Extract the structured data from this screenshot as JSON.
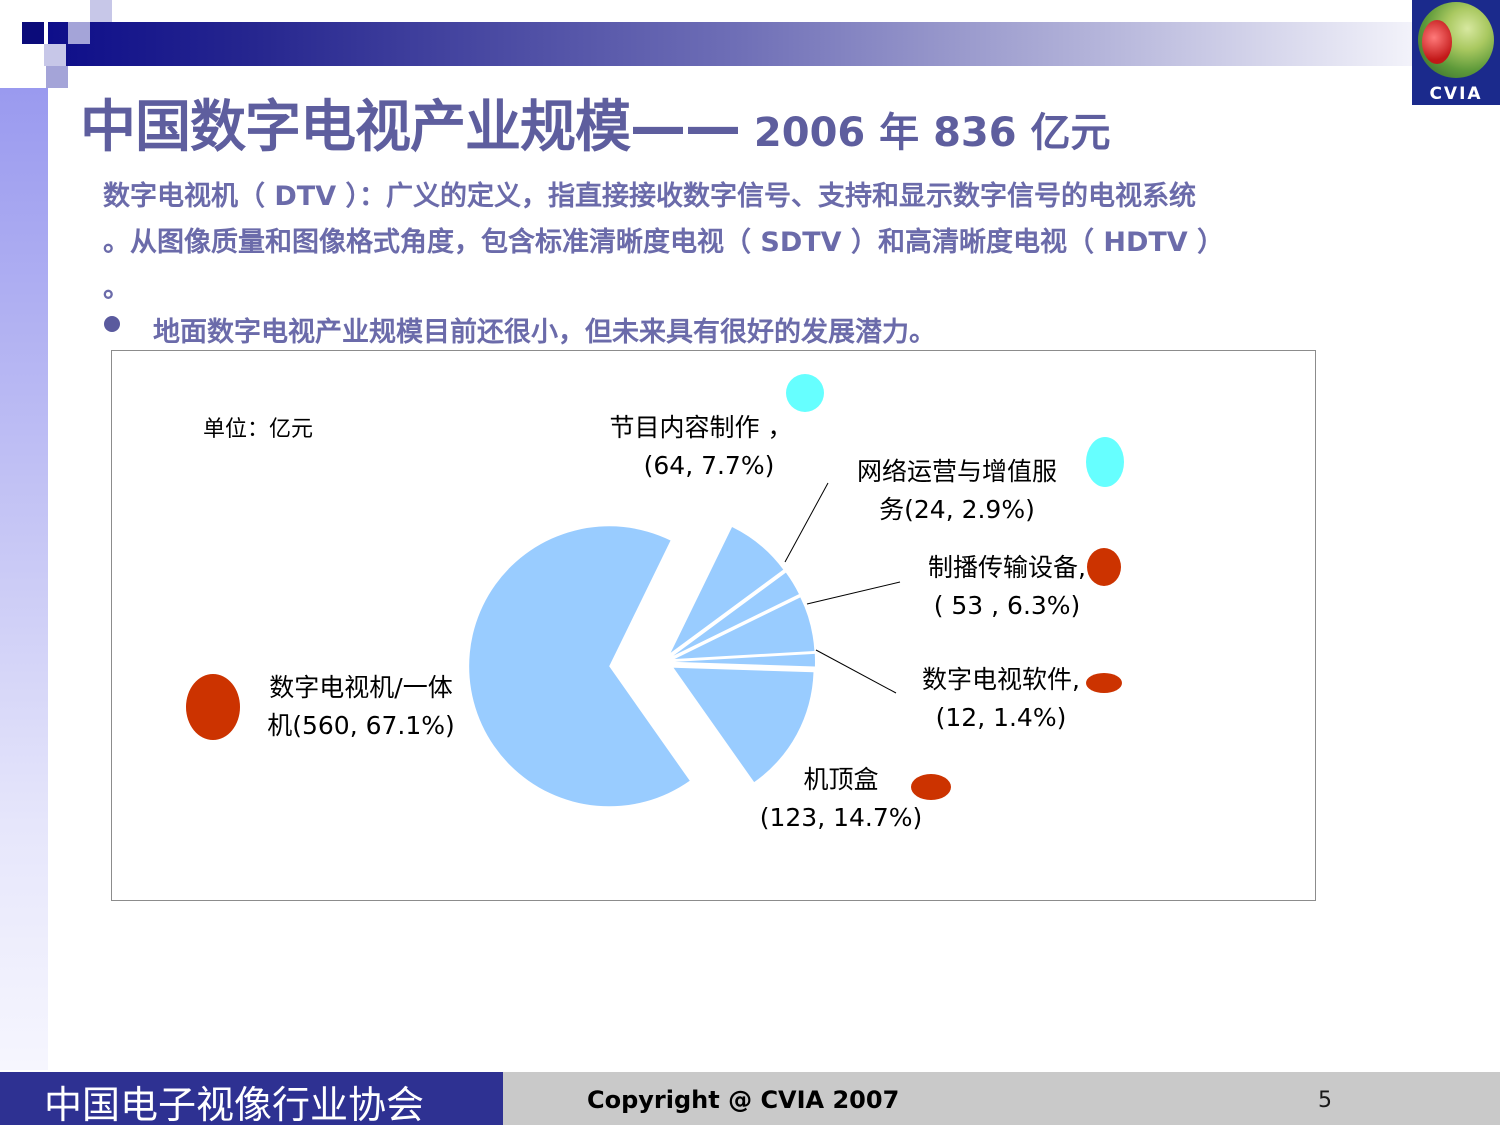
{
  "slide": {
    "title_main": "中国数字电视产业规模——",
    "title_sub": " 2006 年 836 亿元",
    "paragraph_line1": "数字电视机（ DTV ）：广义的定义，指直接接收数字信号、支持和显示数字信号的电视系统",
    "paragraph_line2": "。从图像质量和图像格式角度，包含标准清晰度电视（ SDTV ）和高清晰度电视（ HDTV ）",
    "paragraph_line3": "。",
    "bullet": "地面数字电视产业规模目前还很小，但未来具有很好的发展潜力。"
  },
  "logo": {
    "text": "CVIA"
  },
  "footer": {
    "org": "中国电子视像行业协会",
    "copyright": "Copyright @ CVIA 2007",
    "page": "5"
  },
  "chart_data": {
    "type": "pie",
    "unit_label": "单位：亿元",
    "total": 836,
    "slices": [
      {
        "name": "数字电视机/一体机",
        "value": 560,
        "percent": "67.1%",
        "label_line1": "数字电视机/一体",
        "label_line2": "机(560, 67.1%)",
        "color": "#99ccff",
        "marker_color": "#cc3300"
      },
      {
        "name": "节目内容制作",
        "value": 64,
        "percent": "7.7%",
        "label_line1": "节目内容制作 ，",
        "label_line2": "(64, 7.7%)",
        "color": "#99ccff",
        "marker_color": "#66ffff"
      },
      {
        "name": "网络运营与增值服务",
        "value": 24,
        "percent": "2.9%",
        "label_line1": "网络运营与增值服",
        "label_line2": "务(24, 2.9%)",
        "color": "#99ccff",
        "marker_color": "#66ffff"
      },
      {
        "name": "制播传输设备",
        "value": 53,
        "percent": "6.3%",
        "label_line1": "制播传输设备,",
        "label_line2": "( 53 , 6.3%)",
        "color": "#99ccff",
        "marker_color": "#cc3300"
      },
      {
        "name": "数字电视软件",
        "value": 12,
        "percent": "1.4%",
        "label_line1": "数字电视软件,",
        "label_line2": "(12, 1.4%)",
        "color": "#99ccff",
        "marker_color": "#cc3300"
      },
      {
        "name": "机顶盒",
        "value": 123,
        "percent": "14.7%",
        "label_line1": "机顶盒",
        "label_line2": "(123, 14.7%)",
        "color": "#99ccff",
        "marker_color": "#cc3300"
      }
    ]
  }
}
